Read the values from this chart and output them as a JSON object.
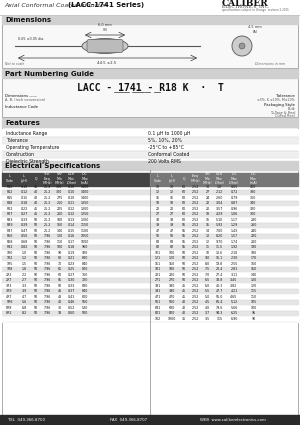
{
  "title_left": "Axial Conformal Coated Inductor",
  "title_bold": "(LACC-1741 Series)",
  "company": "CALIBER",
  "company_sub": "ELECTRONICS, INC.",
  "company_tagline": "specifications subject to change  revision 3-2005",
  "section_dimensions": "Dimensions",
  "section_pn": "Part Numbering Guide",
  "section_features": "Features",
  "section_electrical": "Electrical Specifications",
  "pn_code": "LACC - 1741 - R18 K  ·  T",
  "features": [
    [
      "Inductance Range",
      "0.1 μH to 1000 μH"
    ],
    [
      "Tolerance",
      "5%, 10%, 20%"
    ],
    [
      "Operating Temperature",
      "-25°C to +85°C"
    ],
    [
      "Construction",
      "Conformal Coated"
    ],
    [
      "Dielectric Strength",
      "200 Volts RMS"
    ]
  ],
  "elec_data": [
    [
      "R10",
      "0.10",
      "45",
      "25.2",
      "300",
      "0.10",
      "1400"
    ],
    [
      "R12",
      "0.12",
      "40",
      "25.2",
      "300",
      "0.10",
      "1400"
    ],
    [
      "R15",
      "0.15",
      "40",
      "25.2",
      "275",
      "0.10",
      "1400"
    ],
    [
      "R18",
      "0.18",
      "40",
      "25.2",
      "250",
      "0.11",
      "1350"
    ],
    [
      "R22",
      "0.22",
      "45",
      "25.2",
      "225",
      "0.12",
      "1300"
    ],
    [
      "R27",
      "0.27",
      "45",
      "25.2",
      "200",
      "0.12",
      "1250"
    ],
    [
      "R33",
      "0.33",
      "50",
      "25.2",
      "180",
      "0.13",
      "1200"
    ],
    [
      "R39",
      "0.39",
      "50",
      "25.2",
      "160",
      "0.14",
      "1150"
    ],
    [
      "R47",
      "0.47",
      "50",
      "25.2",
      "140",
      "0.15",
      "1100"
    ],
    [
      "R56",
      "0.56",
      "50",
      "7.96",
      "120",
      "0.16",
      "1050"
    ],
    [
      "R68",
      "0.68",
      "50",
      "7.96",
      "110",
      "0.17",
      "1000"
    ],
    [
      "R82",
      "0.82",
      "50",
      "7.96",
      "100",
      "0.18",
      "960"
    ],
    [
      "1R0",
      "1.0",
      "50",
      "7.96",
      "90",
      "0.19",
      "920"
    ],
    [
      "1R2",
      "1.2",
      "50",
      "7.96",
      "80",
      "0.21",
      "880"
    ],
    [
      "1R5",
      "1.5",
      "50",
      "7.96",
      "70",
      "0.23",
      "840"
    ],
    [
      "1R8",
      "1.8",
      "50",
      "7.96",
      "65",
      "0.25",
      "800"
    ],
    [
      "2R2",
      "2.2",
      "50",
      "7.96",
      "60",
      "0.27",
      "760"
    ],
    [
      "2R7",
      "2.7",
      "50",
      "7.96",
      "55",
      "0.30",
      "720"
    ],
    [
      "3R3",
      "3.3",
      "50",
      "7.96",
      "50",
      "0.33",
      "680"
    ],
    [
      "3R9",
      "3.9",
      "50",
      "7.96",
      "46",
      "0.37",
      "640"
    ],
    [
      "4R7",
      "4.7",
      "50",
      "7.96",
      "43",
      "0.41",
      "600"
    ],
    [
      "5R6",
      "5.6",
      "50",
      "7.96",
      "40",
      "0.46",
      "560"
    ],
    [
      "6R8",
      "6.8",
      "50",
      "7.96",
      "36",
      "0.52",
      "530"
    ],
    [
      "8R2",
      "8.2",
      "50",
      "7.96",
      "33",
      "0.60",
      "500"
    ]
  ],
  "elec_data2": [
    [
      "10",
      "10",
      "60",
      "2.52",
      "30",
      "1.8",
      "0.65",
      "400"
    ],
    [
      "12",
      "12",
      "60",
      "2.52",
      "27",
      "2.12",
      "0.72",
      "380"
    ],
    [
      "15",
      "15",
      "60",
      "2.52",
      "24",
      "2.60",
      "0.79",
      "360"
    ],
    [
      "18",
      "18",
      "60",
      "2.52",
      "22",
      "3.04",
      "0.87",
      "340"
    ],
    [
      "22",
      "22",
      "60",
      "2.52",
      "20",
      "3.57",
      "0.96",
      "320"
    ],
    [
      "27",
      "27",
      "60",
      "2.52",
      "18",
      "4.29",
      "1.06",
      "300"
    ],
    [
      "33",
      "33",
      "60",
      "2.52",
      "16",
      "5.10",
      "1.17",
      "280"
    ],
    [
      "39",
      "39",
      "55",
      "2.52",
      "15",
      "5.92",
      "1.29",
      "260"
    ],
    [
      "47",
      "47",
      "55",
      "2.52",
      "14",
      "7.00",
      "1.43",
      "240"
    ],
    [
      "56",
      "56",
      "55",
      "2.52",
      "13",
      "8.20",
      "1.57",
      "220"
    ],
    [
      "68",
      "68",
      "55",
      "2.52",
      "12",
      "9.70",
      "1.74",
      "200"
    ],
    [
      "82",
      "82",
      "55",
      "2.52",
      "11",
      "11.5",
      "1.92",
      "190"
    ],
    [
      "101",
      "100",
      "50",
      "2.52",
      "10",
      "13.6",
      "2.10",
      "180"
    ],
    [
      "121",
      "120",
      "50",
      "2.52",
      "9.0",
      "16.1",
      "2.30",
      "170"
    ],
    [
      "151",
      "150",
      "50",
      "2.52",
      "8.0",
      "19.8",
      "2.55",
      "160"
    ],
    [
      "181",
      "180",
      "50",
      "2.52",
      "7.5",
      "23.4",
      "2.81",
      "150"
    ],
    [
      "221",
      "220",
      "50",
      "2.52",
      "7.0",
      "27.4",
      "3.11",
      "140"
    ],
    [
      "271",
      "270",
      "50",
      "2.52",
      "6.5",
      "33.8",
      "3.45",
      "130"
    ],
    [
      "331",
      "330",
      "45",
      "2.52",
      "6.0",
      "40.3",
      "3.82",
      "120"
    ],
    [
      "391",
      "390",
      "45",
      "2.52",
      "5.5",
      "47.7",
      "4.21",
      "115"
    ],
    [
      "471",
      "470",
      "45",
      "2.52",
      "5.0",
      "56.0",
      "4.65",
      "110"
    ],
    [
      "561",
      "560",
      "40",
      "2.52",
      "4.5",
      "66.4",
      "5.12",
      "105"
    ],
    [
      "681",
      "680",
      "40",
      "2.52",
      "4.0",
      "79.6",
      "5.66",
      "100"
    ],
    [
      "821",
      "820",
      "40",
      "2.52",
      "3.7",
      "94.3",
      "6.25",
      "95"
    ],
    [
      "102",
      "1000",
      "35",
      "2.52",
      "3.5",
      "115",
      "6.90",
      "90"
    ]
  ],
  "bg_white": "#ffffff",
  "footer_color": "#2a2a2a",
  "tel": "TEL  049-366-8700",
  "fax": "FAX  049-366-8707",
  "web": "WEB  www.caliberelectronics.com"
}
